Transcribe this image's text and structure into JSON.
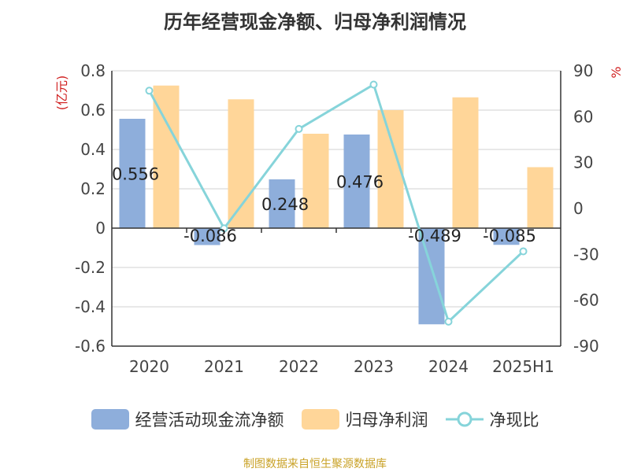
{
  "chart_data": {
    "type": "bar",
    "title": "历年经营现金净额、归母净利润情况",
    "categories": [
      "2020",
      "2021",
      "2022",
      "2023",
      "2024",
      "2025H1"
    ],
    "y_left": {
      "unit_label": "(亿元)",
      "ticks": [
        "0.8",
        "0.6",
        "0.4",
        "0.2",
        "0",
        "-0.2",
        "-0.4",
        "-0.6"
      ],
      "lim": [
        -0.6,
        0.8
      ]
    },
    "y_right": {
      "unit_label": "%",
      "ticks": [
        "90",
        "60",
        "30",
        "0",
        "-30",
        "-60",
        "-90"
      ],
      "lim": [
        -90,
        90
      ]
    },
    "series": [
      {
        "name": "经营活动现金流净额",
        "type": "bar",
        "axis": "left",
        "color": "#8eaedb",
        "values": [
          0.556,
          -0.086,
          0.248,
          0.476,
          -0.489,
          -0.085
        ],
        "labels": [
          "0.556",
          "-0.086",
          "0.248",
          "0.476",
          "-0.489",
          "-0.085"
        ]
      },
      {
        "name": "归母净利润",
        "type": "bar",
        "axis": "left",
        "color": "#ffd699",
        "values": [
          0.725,
          0.655,
          0.48,
          0.6,
          0.665,
          0.31
        ]
      },
      {
        "name": "净现比",
        "type": "line",
        "axis": "right",
        "color": "#86d4da",
        "values": [
          77,
          -13,
          52,
          81,
          -74,
          -28
        ]
      }
    ],
    "grid": true
  },
  "legend": [
    {
      "label": "经营活动现金流净额",
      "kind": "bar",
      "color": "#8eaedb"
    },
    {
      "label": "归母净利润",
      "kind": "bar",
      "color": "#ffd699"
    },
    {
      "label": "净现比",
      "kind": "line",
      "color": "#86d4da"
    }
  ],
  "source": "制图数据来自恒生聚源数据库"
}
